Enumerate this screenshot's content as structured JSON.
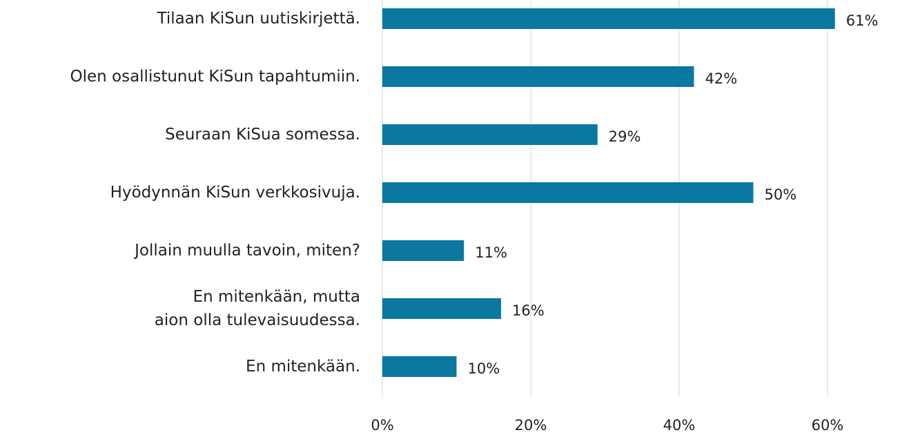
{
  "chart_data": {
    "type": "barh",
    "categories": [
      "Tilaan KiSun uutiskirjettä.",
      "Olen osallistunut KiSun tapahtumiin.",
      "Seuraan KiSua somessa.",
      "Hyödynnän KiSun verkkosivuja.",
      "Jollain muulla tavoin, miten?",
      "En mitenkään, mutta\naion olla tulevaisuudessa.",
      "En mitenkään."
    ],
    "values": [
      61,
      42,
      29,
      50,
      11,
      16,
      10
    ],
    "value_labels": [
      "61%",
      "42%",
      "29%",
      "50%",
      "11%",
      "16%",
      "10%"
    ],
    "color": "#0b78a1",
    "xlim": [
      0,
      60
    ],
    "xticks": [
      {
        "value": 0,
        "label": "0%"
      },
      {
        "value": 20,
        "label": "20%"
      },
      {
        "value": 40,
        "label": "40%"
      },
      {
        "value": 60,
        "label": "60%"
      }
    ],
    "grid": true
  }
}
